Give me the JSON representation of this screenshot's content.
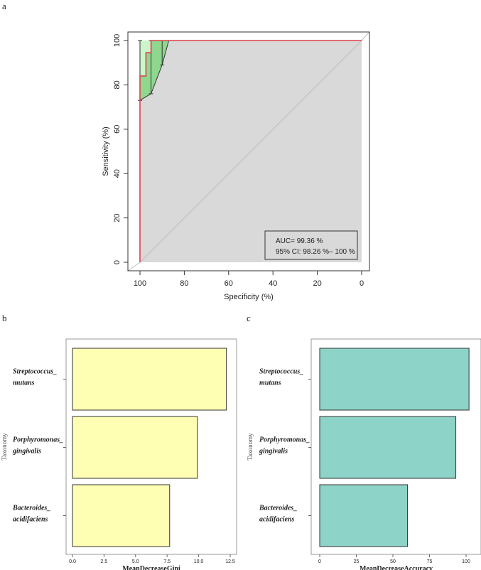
{
  "panels": {
    "a": "a",
    "b": "b",
    "c": "c"
  },
  "chart_data": [
    {
      "type": "line",
      "panel": "a",
      "xlabel": "Specificity (%)",
      "ylabel": "Sensitivity (%)",
      "x_ticks": [
        100,
        80,
        60,
        40,
        20,
        0
      ],
      "y_ticks": [
        0,
        20,
        40,
        60,
        80,
        100
      ],
      "xlim": [
        100,
        0
      ],
      "ylim": [
        0,
        100
      ],
      "x_reversed": true,
      "grid": false,
      "annotation": [
        "AUC= 99.36 %",
        "95% CI: 98.26 %– 100 %"
      ],
      "roc_curve": {
        "color": "#e0414a",
        "points": [
          [
            100,
            0
          ],
          [
            100,
            73
          ],
          [
            100,
            84
          ],
          [
            97.3,
            84
          ],
          [
            97.3,
            94.5
          ],
          [
            95,
            94.5
          ],
          [
            95,
            100
          ],
          [
            0,
            100
          ]
        ]
      },
      "ci_upper": [
        [
          100,
          100
        ],
        [
          95,
          100
        ],
        [
          0,
          100
        ]
      ],
      "ci_lower": [
        [
          100,
          73
        ],
        [
          95,
          76
        ],
        [
          90,
          89
        ],
        [
          87,
          100
        ]
      ],
      "ci_error_bars": [
        {
          "x": 100,
          "low": 73,
          "high": 100
        },
        {
          "x": 95,
          "low": 76,
          "high": 100
        },
        {
          "x": 90,
          "low": 89,
          "high": 100
        }
      ],
      "reference_line": [
        [
          100,
          0
        ],
        [
          0,
          100
        ]
      ],
      "colors": {
        "auc_fill": "#d9d9d9",
        "ci_fill": "#8fd68f",
        "ci_fill_light": "#ccf5cc"
      }
    },
    {
      "type": "bar",
      "panel": "b",
      "orientation": "horizontal",
      "categories": [
        [
          "Streptococcus_",
          "mutans"
        ],
        [
          "Porphyromonas_",
          "gingivalis"
        ],
        [
          "Bacteroides_",
          "acidifaciens"
        ]
      ],
      "values": [
        12.2,
        9.9,
        7.7
      ],
      "xlabel": "MeanDecreaseGini",
      "ylabel": "Taxonomy",
      "x_ticks": [
        "0.0",
        "2.5",
        "5.0",
        "7.5",
        "10.0",
        "12.5"
      ],
      "x_tick_values": [
        0,
        2.5,
        5,
        7.5,
        10,
        12.5
      ],
      "xlim": [
        0,
        12.5
      ],
      "bar_color": "#ffffb3"
    },
    {
      "type": "bar",
      "panel": "c",
      "orientation": "horizontal",
      "categories": [
        [
          "Streptococcus_",
          "mutans"
        ],
        [
          "Porphyromonas_",
          "gingivalis"
        ],
        [
          "Bacteroides_",
          "acidifaciens"
        ]
      ],
      "values": [
        102,
        93,
        60
      ],
      "xlabel": "MeanDecreaseAccuracy",
      "ylabel": "Taxonomy",
      "x_ticks": [
        "0",
        "25",
        "50",
        "75",
        "100"
      ],
      "x_tick_values": [
        0,
        25,
        50,
        75,
        100
      ],
      "xlim": [
        0,
        100
      ],
      "bar_color": "#8dd3c7"
    }
  ]
}
